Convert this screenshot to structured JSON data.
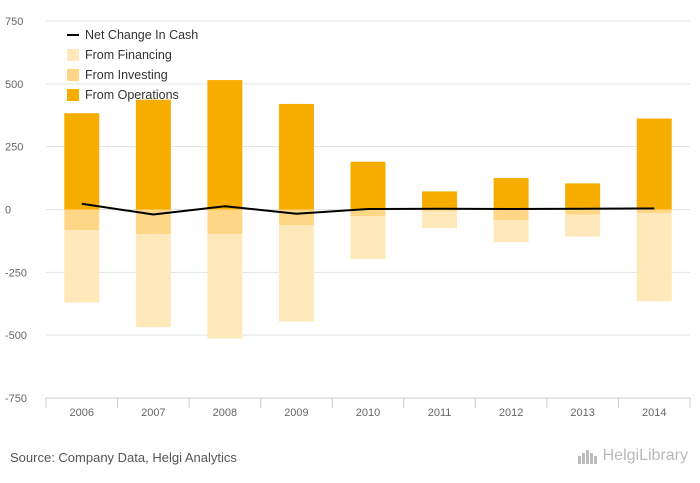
{
  "chart_data": {
    "type": "bar",
    "stacked": true,
    "categories": [
      "2006",
      "2007",
      "2008",
      "2009",
      "2010",
      "2011",
      "2012",
      "2013",
      "2014"
    ],
    "series": [
      {
        "name": "From Operations",
        "kind": "bar",
        "color": "#f7ad00",
        "values": [
          383,
          437,
          515,
          420,
          190,
          72,
          125,
          104,
          362
        ]
      },
      {
        "name": "From Investing",
        "kind": "bar",
        "color": "#ffd685",
        "values": [
          -82,
          -98,
          -97,
          -63,
          -27,
          -6,
          -42,
          -20,
          -14
        ]
      },
      {
        "name": "From Financing",
        "kind": "bar",
        "color": "#ffe9bb",
        "values": [
          -288,
          -370,
          -416,
          -383,
          -170,
          -68,
          -88,
          -88,
          -351
        ]
      },
      {
        "name": "Net Change In Cash",
        "kind": "line",
        "color": "#000000",
        "values": [
          23,
          -20,
          13,
          -17,
          2,
          3,
          2,
          3,
          4
        ]
      }
    ],
    "yticks": [
      750,
      500,
      250,
      0,
      -250,
      -500,
      -750
    ],
    "ylim": [
      -750,
      750
    ],
    "grid": true,
    "legend_position": "top-left",
    "legend_order": [
      "Net Change In Cash",
      "From Financing",
      "From Investing",
      "From Operations"
    ]
  },
  "footer": {
    "source": "Source: Company Data, Helgi Analytics",
    "logo_text": "HelgiLibrary"
  }
}
